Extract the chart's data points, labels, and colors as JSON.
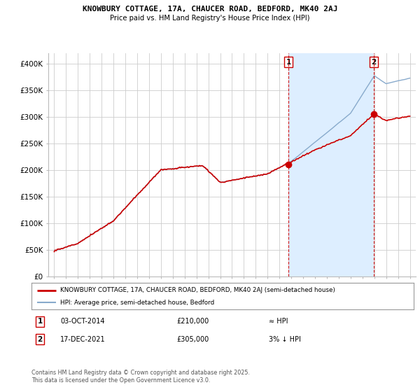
{
  "title1": "KNOWBURY COTTAGE, 17A, CHAUCER ROAD, BEDFORD, MK40 2AJ",
  "title2": "Price paid vs. HM Land Registry's House Price Index (HPI)",
  "legend_property": "KNOWBURY COTTAGE, 17A, CHAUCER ROAD, BEDFORD, MK40 2AJ (semi-detached house)",
  "legend_hpi": "HPI: Average price, semi-detached house, Bedford",
  "annotation1_date": "03-OCT-2014",
  "annotation1_price": "£210,000",
  "annotation1_hpi": "≈ HPI",
  "annotation2_date": "17-DEC-2021",
  "annotation2_price": "£305,000",
  "annotation2_hpi": "3% ↓ HPI",
  "footnote": "Contains HM Land Registry data © Crown copyright and database right 2025.\nThis data is licensed under the Open Government Licence v3.0.",
  "property_color": "#cc0000",
  "hpi_color": "#88aacc",
  "shade_color": "#ddeeff",
  "background_color": "#ffffff",
  "grid_color": "#cccccc",
  "sale1_year": 2014.75,
  "sale1_price": 210000,
  "sale2_year": 2021.96,
  "sale2_price": 305000,
  "ylim": [
    0,
    420000
  ],
  "xlim_start": 1994.5,
  "xlim_end": 2025.5,
  "yticks": [
    0,
    50000,
    100000,
    150000,
    200000,
    250000,
    300000,
    350000,
    400000
  ],
  "ytick_labels": [
    "£0",
    "£50K",
    "£100K",
    "£150K",
    "£200K",
    "£250K",
    "£300K",
    "£350K",
    "£400K"
  ],
  "xticks": [
    1995,
    1996,
    1997,
    1998,
    1999,
    2000,
    2001,
    2002,
    2003,
    2004,
    2005,
    2006,
    2007,
    2008,
    2009,
    2010,
    2011,
    2012,
    2013,
    2014,
    2015,
    2016,
    2017,
    2018,
    2019,
    2020,
    2021,
    2022,
    2023,
    2024,
    2025
  ]
}
